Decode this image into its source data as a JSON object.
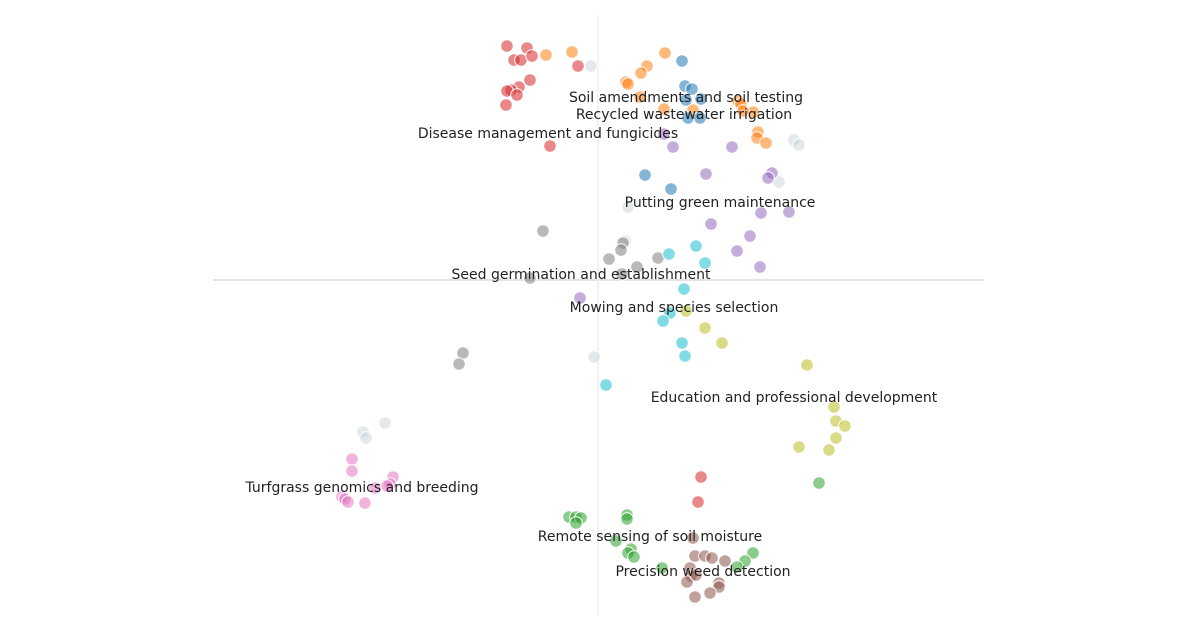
{
  "chart_data": {
    "type": "scatter",
    "title": "",
    "xlabel": "",
    "ylabel": "",
    "xlim": [
      -3.85,
      3.86
    ],
    "ylim": [
      -3.35,
      2.65
    ],
    "grid": false,
    "axes_lines": "zero-crossing",
    "series": [
      {
        "name": "red",
        "color": "#d62728",
        "points": [
          [
            -0.91,
            2.34
          ],
          [
            -0.71,
            2.32
          ],
          [
            -0.84,
            2.2
          ],
          [
            -0.77,
            2.2
          ],
          [
            -0.66,
            2.24
          ],
          [
            -0.68,
            2.0
          ],
          [
            -0.79,
            1.93
          ],
          [
            -0.87,
            1.9
          ],
          [
            -0.91,
            1.89
          ],
          [
            -0.81,
            1.85
          ],
          [
            -0.92,
            1.75
          ],
          [
            -0.2,
            2.14
          ],
          [
            -0.48,
            1.34
          ],
          [
            1.03,
            -1.97
          ],
          [
            1.0,
            -2.22
          ]
        ]
      },
      {
        "name": "orange",
        "color": "#ff7f0e",
        "points": [
          [
            -0.52,
            2.25
          ],
          [
            -0.26,
            2.28
          ],
          [
            0.67,
            2.27
          ],
          [
            0.49,
            2.14
          ],
          [
            0.43,
            2.07
          ],
          [
            0.28,
            1.98
          ],
          [
            0.3,
            1.96
          ],
          [
            0.42,
            1.83
          ],
          [
            0.66,
            1.71
          ],
          [
            0.95,
            1.7
          ],
          [
            1.4,
            1.79
          ],
          [
            1.43,
            1.76
          ],
          [
            1.55,
            1.68
          ],
          [
            1.45,
            1.69
          ],
          [
            1.6,
            1.48
          ],
          [
            1.59,
            1.42
          ],
          [
            1.68,
            1.37
          ]
        ]
      },
      {
        "name": "blue",
        "color": "#1f77b4",
        "points": [
          [
            0.84,
            2.19
          ],
          [
            0.87,
            1.94
          ],
          [
            0.94,
            1.91
          ],
          [
            0.88,
            1.8
          ],
          [
            1.03,
            1.81
          ],
          [
            0.9,
            1.62
          ],
          [
            1.02,
            1.62
          ],
          [
            0.47,
            1.05
          ],
          [
            0.73,
            0.91
          ]
        ]
      },
      {
        "name": "light-gray",
        "color": "#c7d3da",
        "points": [
          [
            -0.07,
            2.14
          ],
          [
            1.96,
            1.4
          ],
          [
            2.01,
            1.35
          ],
          [
            1.81,
            0.98
          ],
          [
            0.3,
            0.73
          ],
          [
            0.27,
            0.39
          ],
          [
            -0.04,
            -0.77
          ],
          [
            -2.13,
            -1.43
          ],
          [
            -2.35,
            -1.52
          ],
          [
            -2.32,
            -1.58
          ]
        ]
      },
      {
        "name": "purple",
        "color": "#9467bd",
        "points": [
          [
            0.66,
            1.46
          ],
          [
            0.75,
            1.33
          ],
          [
            1.34,
            1.33
          ],
          [
            1.08,
            1.06
          ],
          [
            1.74,
            1.07
          ],
          [
            1.7,
            1.02
          ],
          [
            1.63,
            0.67
          ],
          [
            1.91,
            0.68
          ],
          [
            1.13,
            0.56
          ],
          [
            1.52,
            0.44
          ],
          [
            1.39,
            0.29
          ],
          [
            1.62,
            0.13
          ],
          [
            -0.18,
            -0.18
          ]
        ]
      },
      {
        "name": "gray",
        "color": "#7f7f7f",
        "points": [
          [
            -0.55,
            0.49
          ],
          [
            0.25,
            0.37
          ],
          [
            0.23,
            0.3
          ],
          [
            0.11,
            0.21
          ],
          [
            0.39,
            0.13
          ],
          [
            0.6,
            0.22
          ],
          [
            0.24,
            0.06
          ],
          [
            -0.68,
            0.02
          ],
          [
            -1.35,
            -0.73
          ],
          [
            -1.39,
            -0.84
          ]
        ]
      },
      {
        "name": "cyan",
        "color": "#17becf",
        "points": [
          [
            0.98,
            0.34
          ],
          [
            0.71,
            0.26
          ],
          [
            1.07,
            0.17
          ],
          [
            0.86,
            -0.09
          ],
          [
            0.72,
            -0.33
          ],
          [
            0.65,
            -0.41
          ],
          [
            0.84,
            -0.63
          ],
          [
            0.87,
            -0.76
          ],
          [
            0.08,
            -1.05
          ]
        ]
      },
      {
        "name": "olive",
        "color": "#bcbd22",
        "points": [
          [
            0.88,
            -0.31
          ],
          [
            1.07,
            -0.48
          ],
          [
            1.24,
            -0.63
          ],
          [
            2.09,
            -0.85
          ],
          [
            2.36,
            -1.27
          ],
          [
            2.38,
            -1.41
          ],
          [
            2.47,
            -1.46
          ],
          [
            2.38,
            -1.58
          ],
          [
            2.01,
            -1.67
          ],
          [
            2.31,
            -1.7
          ]
        ]
      },
      {
        "name": "green",
        "color": "#2ca02c",
        "points": [
          [
            2.21,
            -2.03
          ],
          [
            -0.29,
            -2.37
          ],
          [
            -0.22,
            -2.37
          ],
          [
            -0.17,
            -2.38
          ],
          [
            -0.22,
            -2.43
          ],
          [
            0.29,
            -2.35
          ],
          [
            0.29,
            -2.39
          ],
          [
            0.18,
            -2.61
          ],
          [
            0.33,
            -2.69
          ],
          [
            0.3,
            -2.73
          ],
          [
            0.36,
            -2.77
          ],
          [
            0.64,
            -2.88
          ],
          [
            1.55,
            -2.73
          ],
          [
            1.47,
            -2.81
          ],
          [
            1.39,
            -2.87
          ]
        ]
      },
      {
        "name": "brown",
        "color": "#8c564b",
        "points": [
          [
            0.95,
            -2.58
          ],
          [
            0.97,
            -2.76
          ],
          [
            1.07,
            -2.76
          ],
          [
            1.14,
            -2.78
          ],
          [
            1.27,
            -2.81
          ],
          [
            0.92,
            -2.88
          ],
          [
            0.93,
            -2.96
          ],
          [
            0.89,
            -3.02
          ],
          [
            0.98,
            -2.95
          ],
          [
            1.21,
            -3.03
          ],
          [
            1.21,
            -3.07
          ],
          [
            1.12,
            -3.13
          ],
          [
            0.97,
            -3.17
          ]
        ]
      },
      {
        "name": "pink",
        "color": "#e377c2",
        "points": [
          [
            -2.46,
            -1.79
          ],
          [
            -2.46,
            -1.91
          ],
          [
            -2.05,
            -1.97
          ],
          [
            -2.08,
            -2.04
          ],
          [
            -2.11,
            -2.06
          ],
          [
            -2.23,
            -2.08
          ],
          [
            -2.56,
            -2.17
          ],
          [
            -2.53,
            -2.19
          ],
          [
            -2.5,
            -2.22
          ],
          [
            -2.33,
            -2.23
          ]
        ]
      }
    ],
    "annotations": [
      {
        "text": "Soil amendments and soil testing",
        "x": 0.88,
        "y": 1.82
      },
      {
        "text": "Recycled wastewater irrigation",
        "x": 0.86,
        "y": 1.65
      },
      {
        "text": "Disease management and fungicides",
        "x": -0.5,
        "y": 1.46
      },
      {
        "text": "Putting green maintenance",
        "x": 1.22,
        "y": 0.77
      },
      {
        "text": "Seed germination and establishment",
        "x": -0.17,
        "y": 0.05
      },
      {
        "text": "Mowing and species selection",
        "x": 0.76,
        "y": -0.28
      },
      {
        "text": "Education and professional development",
        "x": 1.96,
        "y": -1.18
      },
      {
        "text": "Turfgrass genomics and breeding",
        "x": -2.36,
        "y": -2.08
      },
      {
        "text": "Remote sensing of soil moisture",
        "x": 0.52,
        "y": -2.57
      },
      {
        "text": "Precision weed detection",
        "x": 1.05,
        "y": -2.92
      }
    ]
  }
}
